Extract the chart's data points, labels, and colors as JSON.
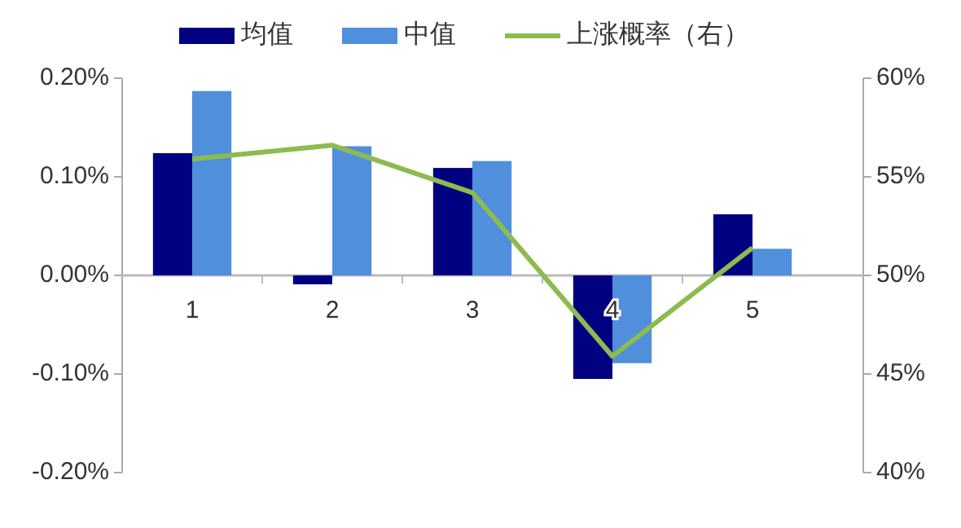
{
  "chart_data": {
    "type": "bar",
    "categories": [
      "1",
      "2",
      "3",
      "4",
      "5"
    ],
    "series": [
      {
        "name": "均值",
        "color": "#000080",
        "values": [
          0.124,
          -0.009,
          0.109,
          -0.105,
          0.062
        ]
      },
      {
        "name": "中值",
        "color": "#4f8fdc",
        "values": [
          0.187,
          0.131,
          0.116,
          -0.089,
          0.027
        ]
      },
      {
        "name": "上涨概率（右）",
        "type": "line",
        "axis": "y2",
        "color": "#8dbb4f",
        "values": [
          55.9,
          56.6,
          54.2,
          45.9,
          51.4
        ]
      }
    ],
    "ylim": [
      -0.2,
      0.2
    ],
    "yticks": [
      {
        "value": -0.2,
        "label": "-0.20%"
      },
      {
        "value": -0.1,
        "label": "-0.10%"
      },
      {
        "value": 0,
        "label": "0.00%"
      },
      {
        "value": 0.1,
        "label": "0.10%"
      },
      {
        "value": 0.2,
        "label": "0.20%"
      }
    ],
    "y2lim": [
      40,
      60
    ],
    "y2ticks": [
      {
        "value": 40,
        "label": "40%"
      },
      {
        "value": 45,
        "label": "45%"
      },
      {
        "value": 50,
        "label": "50%"
      },
      {
        "value": 55,
        "label": "55%"
      },
      {
        "value": 60,
        "label": "60%"
      }
    ],
    "legend": "top",
    "grid": false,
    "marker": "none"
  }
}
